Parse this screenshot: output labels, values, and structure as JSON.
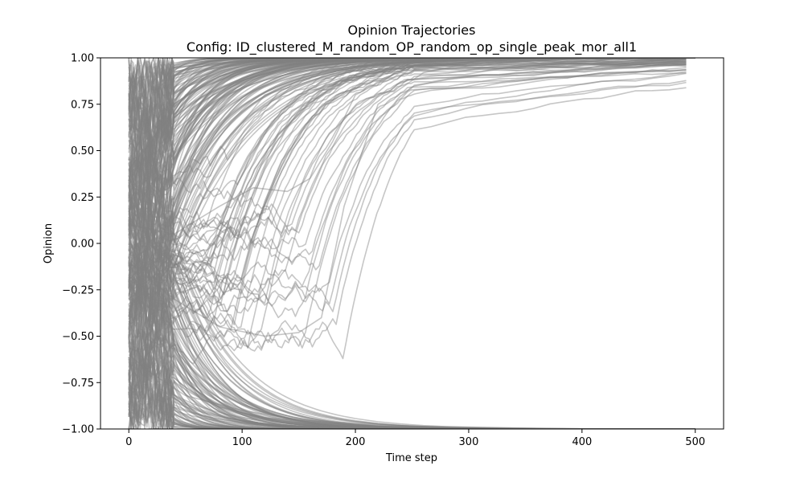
{
  "chart_data": {
    "type": "line",
    "title": "Opinion Trajectories",
    "subtitle": "Config: ID_clustered_M_random_OP_random_op_single_peak_mor_all1",
    "xlabel": "Time step",
    "ylabel": "Opinion",
    "xlim": [
      -25,
      525
    ],
    "ylim": [
      -1.0,
      1.0
    ],
    "x_ticks": [
      0,
      100,
      200,
      300,
      400,
      500
    ],
    "y_ticks": [
      -1.0,
      -0.75,
      -0.5,
      -0.25,
      0.0,
      0.25,
      0.5,
      0.75,
      1.0
    ],
    "x_tick_labels": [
      "0",
      "100",
      "200",
      "300",
      "400",
      "500"
    ],
    "y_tick_labels": [
      "−1.00",
      "−0.75",
      "−0.50",
      "−0.25",
      "0.00",
      "0.25",
      "0.50",
      "0.75",
      "1.00"
    ],
    "grid": false,
    "line_color": "#808080",
    "series_summary": {
      "time_range": [
        0,
        500
      ],
      "initial_opinion_range": [
        -0.98,
        0.95
      ],
      "final_values": [
        1.0,
        -1.0
      ],
      "upper_cluster_converges_by": 400,
      "lower_cluster_converges_by": 300,
      "slowest_trajectories_rise_until": 300
    },
    "series": [
      {
        "x": [
          0,
          20,
          50,
          80,
          120,
          200,
          300,
          500
        ],
        "y": [
          0.4,
          0.55,
          0.8,
          0.9,
          0.96,
          0.99,
          1.0,
          1.0
        ]
      },
      {
        "x": [
          0,
          20,
          50,
          80,
          120,
          200,
          300,
          500
        ],
        "y": [
          -0.3,
          -0.2,
          0.1,
          0.5,
          0.8,
          0.95,
          0.99,
          1.0
        ]
      },
      {
        "x": [
          0,
          20,
          50,
          80,
          120,
          200,
          300,
          500
        ],
        "y": [
          -0.2,
          -0.45,
          -0.75,
          -0.88,
          -0.94,
          -0.98,
          -1.0,
          -1.0
        ]
      },
      {
        "x": [
          0,
          40,
          80,
          120,
          150,
          170,
          190,
          220,
          260,
          300,
          400,
          500
        ],
        "y": [
          -0.1,
          -0.3,
          -0.45,
          -0.5,
          -0.48,
          -0.4,
          0.2,
          0.75,
          0.92,
          0.97,
          0.995,
          1.0
        ]
      },
      {
        "x": [
          0,
          40,
          80,
          110,
          140,
          160,
          180,
          200,
          240,
          300,
          400,
          500
        ],
        "y": [
          0.1,
          0.05,
          0.2,
          0.3,
          0.28,
          0.35,
          0.55,
          0.8,
          0.93,
          0.97,
          0.995,
          1.0
        ]
      },
      {
        "x": [
          0,
          20,
          50,
          100,
          150,
          200,
          250,
          300,
          400,
          500
        ],
        "y": [
          -0.6,
          -0.7,
          -0.82,
          -0.9,
          -0.95,
          -0.97,
          -0.985,
          -0.99,
          -1.0,
          -1.0
        ]
      }
    ]
  }
}
